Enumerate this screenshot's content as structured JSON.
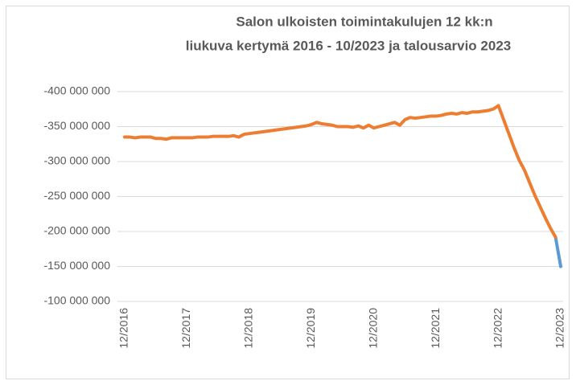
{
  "chart_data": {
    "type": "line",
    "title": [
      "Salon ulkoisten toimintakulujen 12 kk:n",
      "liukuva kertymä 2016 - 10/2023 ja talousarvio 2023"
    ],
    "x": [
      "12/2016",
      "01/2017",
      "02/2017",
      "03/2017",
      "04/2017",
      "05/2017",
      "06/2017",
      "07/2017",
      "08/2017",
      "09/2017",
      "10/2017",
      "11/2017",
      "12/2017",
      "01/2018",
      "02/2018",
      "03/2018",
      "04/2018",
      "05/2018",
      "06/2018",
      "07/2018",
      "08/2018",
      "09/2018",
      "10/2018",
      "11/2018",
      "12/2018",
      "01/2019",
      "02/2019",
      "03/2019",
      "04/2019",
      "05/2019",
      "06/2019",
      "07/2019",
      "08/2019",
      "09/2019",
      "10/2019",
      "11/2019",
      "12/2019",
      "01/2020",
      "02/2020",
      "03/2020",
      "04/2020",
      "05/2020",
      "06/2020",
      "07/2020",
      "08/2020",
      "09/2020",
      "10/2020",
      "11/2020",
      "12/2020",
      "01/2021",
      "02/2021",
      "03/2021",
      "04/2021",
      "05/2021",
      "06/2021",
      "07/2021",
      "08/2021",
      "09/2021",
      "10/2021",
      "11/2021",
      "12/2021",
      "01/2022",
      "02/2022",
      "03/2022",
      "04/2022",
      "05/2022",
      "06/2022",
      "07/2022",
      "08/2022",
      "09/2022",
      "10/2022",
      "11/2022",
      "12/2022",
      "01/2023",
      "02/2023",
      "03/2023",
      "04/2023",
      "05/2023",
      "06/2023",
      "07/2023",
      "08/2023",
      "09/2023",
      "10/2023",
      "11/2023",
      "12/2023"
    ],
    "series": [
      {
        "color": "#5b9bd5",
        "values": [
          null,
          null,
          null,
          null,
          null,
          null,
          null,
          null,
          null,
          null,
          null,
          null,
          null,
          null,
          null,
          null,
          null,
          null,
          null,
          null,
          null,
          null,
          null,
          null,
          null,
          null,
          null,
          null,
          null,
          null,
          null,
          null,
          null,
          null,
          null,
          null,
          null,
          null,
          null,
          null,
          null,
          null,
          null,
          null,
          null,
          null,
          null,
          null,
          null,
          null,
          null,
          null,
          null,
          null,
          null,
          null,
          null,
          null,
          null,
          null,
          null,
          null,
          null,
          null,
          null,
          null,
          null,
          null,
          null,
          null,
          null,
          null,
          null,
          null,
          null,
          null,
          null,
          null,
          null,
          null,
          null,
          null,
          null,
          -192000000,
          -150000000
        ]
      },
      {
        "color": "#ed7d31",
        "values": [
          -335000000,
          -335000000,
          -334000000,
          -335000000,
          -335000000,
          -335000000,
          -333000000,
          -333000000,
          -332000000,
          -334000000,
          -334000000,
          -334000000,
          -334000000,
          -334000000,
          -335000000,
          -335000000,
          -335000000,
          -336000000,
          -336000000,
          -336000000,
          -336000000,
          -337000000,
          -335000000,
          -339000000,
          -340000000,
          -341000000,
          -342000000,
          -343000000,
          -344000000,
          -345000000,
          -346000000,
          -347000000,
          -348000000,
          -349000000,
          -350000000,
          -351000000,
          -353000000,
          -356000000,
          -354000000,
          -353000000,
          -352000000,
          -350000000,
          -350000000,
          -350000000,
          -349000000,
          -351000000,
          -348000000,
          -352000000,
          -348000000,
          -350000000,
          -352000000,
          -354000000,
          -356000000,
          -352000000,
          -360000000,
          -363000000,
          -362000000,
          -363000000,
          -364000000,
          -365000000,
          -365000000,
          -366000000,
          -368000000,
          -369000000,
          -368000000,
          -370000000,
          -369000000,
          -371000000,
          -371000000,
          -372000000,
          -373000000,
          -375000000,
          -380000000,
          -360000000,
          -340000000,
          -320000000,
          -302000000,
          -288000000,
          -270000000,
          -252000000,
          -236000000,
          -220000000,
          -205000000,
          -192000000,
          null
        ]
      }
    ],
    "ylim": [
      -100000000,
      -400000000
    ],
    "yticks": [
      {
        "value": -400000000,
        "label": "-400 000 000"
      },
      {
        "value": -350000000,
        "label": "-350 000 000"
      },
      {
        "value": -300000000,
        "label": "-300 000 000"
      },
      {
        "value": -250000000,
        "label": "-250 000 000"
      },
      {
        "value": -200000000,
        "label": "-200 000 000"
      },
      {
        "value": -150000000,
        "label": "-150 000 000"
      },
      {
        "value": -100000000,
        "label": "-100 000 000"
      }
    ],
    "grid": true
  }
}
